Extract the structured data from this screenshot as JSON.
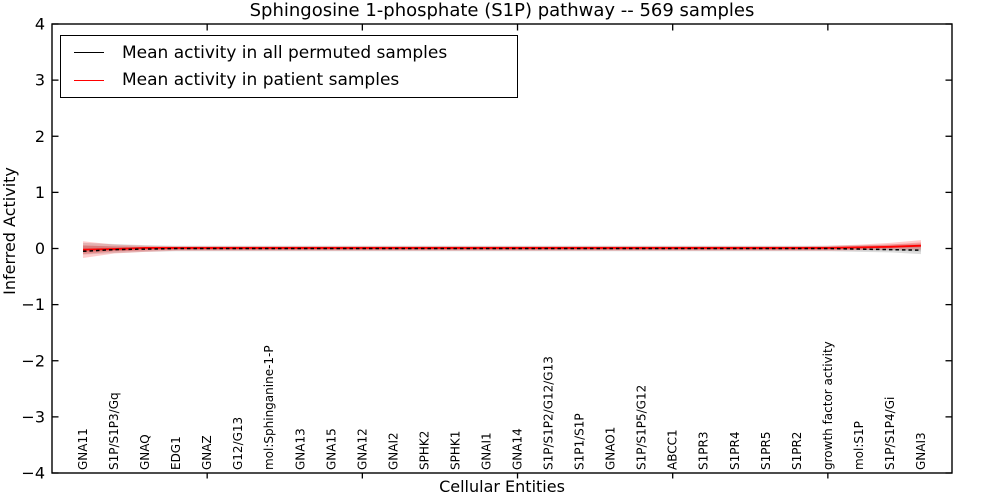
{
  "figure": {
    "title": "Sphingosine 1-phosphate (S1P) pathway -- 569 samples",
    "xlabel": "Cellular Entities",
    "ylabel": "Inferred Activity",
    "legend": [
      {
        "label": "Mean activity in all permuted samples",
        "color": "#000000"
      },
      {
        "label": "Mean activity in patient samples",
        "color": "#ff0000"
      }
    ]
  },
  "chart_data": {
    "type": "line",
    "title": "Sphingosine 1-phosphate (S1P) pathway -- 569 samples",
    "xlabel": "Cellular Entities",
    "ylabel": "Inferred Activity",
    "ylim": [
      -4,
      4
    ],
    "xlim": [
      0,
      29
    ],
    "yticks": [
      -4,
      -3,
      -2,
      -1,
      0,
      1,
      2,
      3,
      4
    ],
    "ytick_labels": [
      "−4",
      "−3",
      "−2",
      "−1",
      "0",
      "1",
      "2",
      "3",
      "4"
    ],
    "xtick_marks_at": [
      5,
      10,
      15,
      20,
      25
    ],
    "grid": false,
    "legend_position": "upper left",
    "categories": [
      "GNA11",
      "S1P/S1P3/Gq",
      "GNAQ",
      "EDG1",
      "GNAZ",
      "G12/G13",
      "mol:Sphinganine-1-P",
      "GNA13",
      "GNA15",
      "GNA12",
      "GNAI2",
      "SPHK2",
      "SPHK1",
      "GNAI1",
      "GNA14",
      "S1P/S1P2/G12/G13",
      "S1P1/S1P",
      "GNAO1",
      "S1P/S1P5/G12",
      "ABCC1",
      "S1PR3",
      "S1PR4",
      "S1PR5",
      "S1PR2",
      "growth factor activity",
      "mol:S1P",
      "S1P/S1P4/Gi",
      "GNAI3"
    ],
    "series": [
      {
        "name": "Mean activity in all permuted samples",
        "color": "#000000",
        "style": "dashed",
        "values": [
          -0.05,
          -0.02,
          -0.01,
          0,
          0,
          0,
          0,
          0,
          0,
          0,
          0,
          0,
          0,
          0,
          0,
          0,
          0,
          0,
          0,
          0,
          0,
          0,
          0,
          0,
          0,
          -0.01,
          -0.02,
          -0.03
        ]
      },
      {
        "name": "Mean activity in patient samples",
        "color": "#ff0000",
        "style": "solid",
        "values": [
          -0.02,
          -0.01,
          0.01,
          0.01,
          0.01,
          0.01,
          0.01,
          0.01,
          0.01,
          0.01,
          0.01,
          0.01,
          0.01,
          0.01,
          0.01,
          0.01,
          0.01,
          0.01,
          0.01,
          0.01,
          0.01,
          0.01,
          0.01,
          0.01,
          0.01,
          0.02,
          0.03,
          0.05
        ]
      }
    ],
    "bands": [
      {
        "name": "permuted-samples-range",
        "color": "#808080",
        "opacity": 0.28,
        "upper": [
          0.1,
          0.08,
          0.06,
          0.05,
          0.05,
          0.05,
          0.05,
          0.05,
          0.05,
          0.05,
          0.05,
          0.05,
          0.05,
          0.05,
          0.05,
          0.05,
          0.05,
          0.05,
          0.05,
          0.05,
          0.05,
          0.05,
          0.05,
          0.05,
          0.05,
          0.06,
          0.07,
          0.09
        ],
        "lower": [
          -0.11,
          -0.08,
          -0.06,
          -0.05,
          -0.05,
          -0.05,
          -0.05,
          -0.05,
          -0.05,
          -0.05,
          -0.05,
          -0.05,
          -0.05,
          -0.05,
          -0.05,
          -0.05,
          -0.05,
          -0.05,
          -0.05,
          -0.05,
          -0.05,
          -0.05,
          -0.05,
          -0.05,
          -0.05,
          -0.06,
          -0.07,
          -0.1
        ]
      },
      {
        "name": "patient-samples-range",
        "color": "#ff0000",
        "opacity": 0.2,
        "upper": [
          0.13,
          0.07,
          0.05,
          0.04,
          0.04,
          0.04,
          0.04,
          0.04,
          0.04,
          0.04,
          0.04,
          0.04,
          0.04,
          0.04,
          0.04,
          0.04,
          0.04,
          0.04,
          0.04,
          0.04,
          0.04,
          0.04,
          0.04,
          0.04,
          0.05,
          0.07,
          0.1,
          0.15
        ],
        "lower": [
          -0.17,
          -0.09,
          -0.06,
          -0.04,
          -0.04,
          -0.04,
          -0.04,
          -0.04,
          -0.04,
          -0.04,
          -0.04,
          -0.04,
          -0.04,
          -0.04,
          -0.04,
          -0.04,
          -0.04,
          -0.04,
          -0.04,
          -0.04,
          -0.04,
          -0.04,
          -0.04,
          -0.04,
          -0.04,
          -0.03,
          -0.02,
          -0.02
        ]
      }
    ]
  }
}
